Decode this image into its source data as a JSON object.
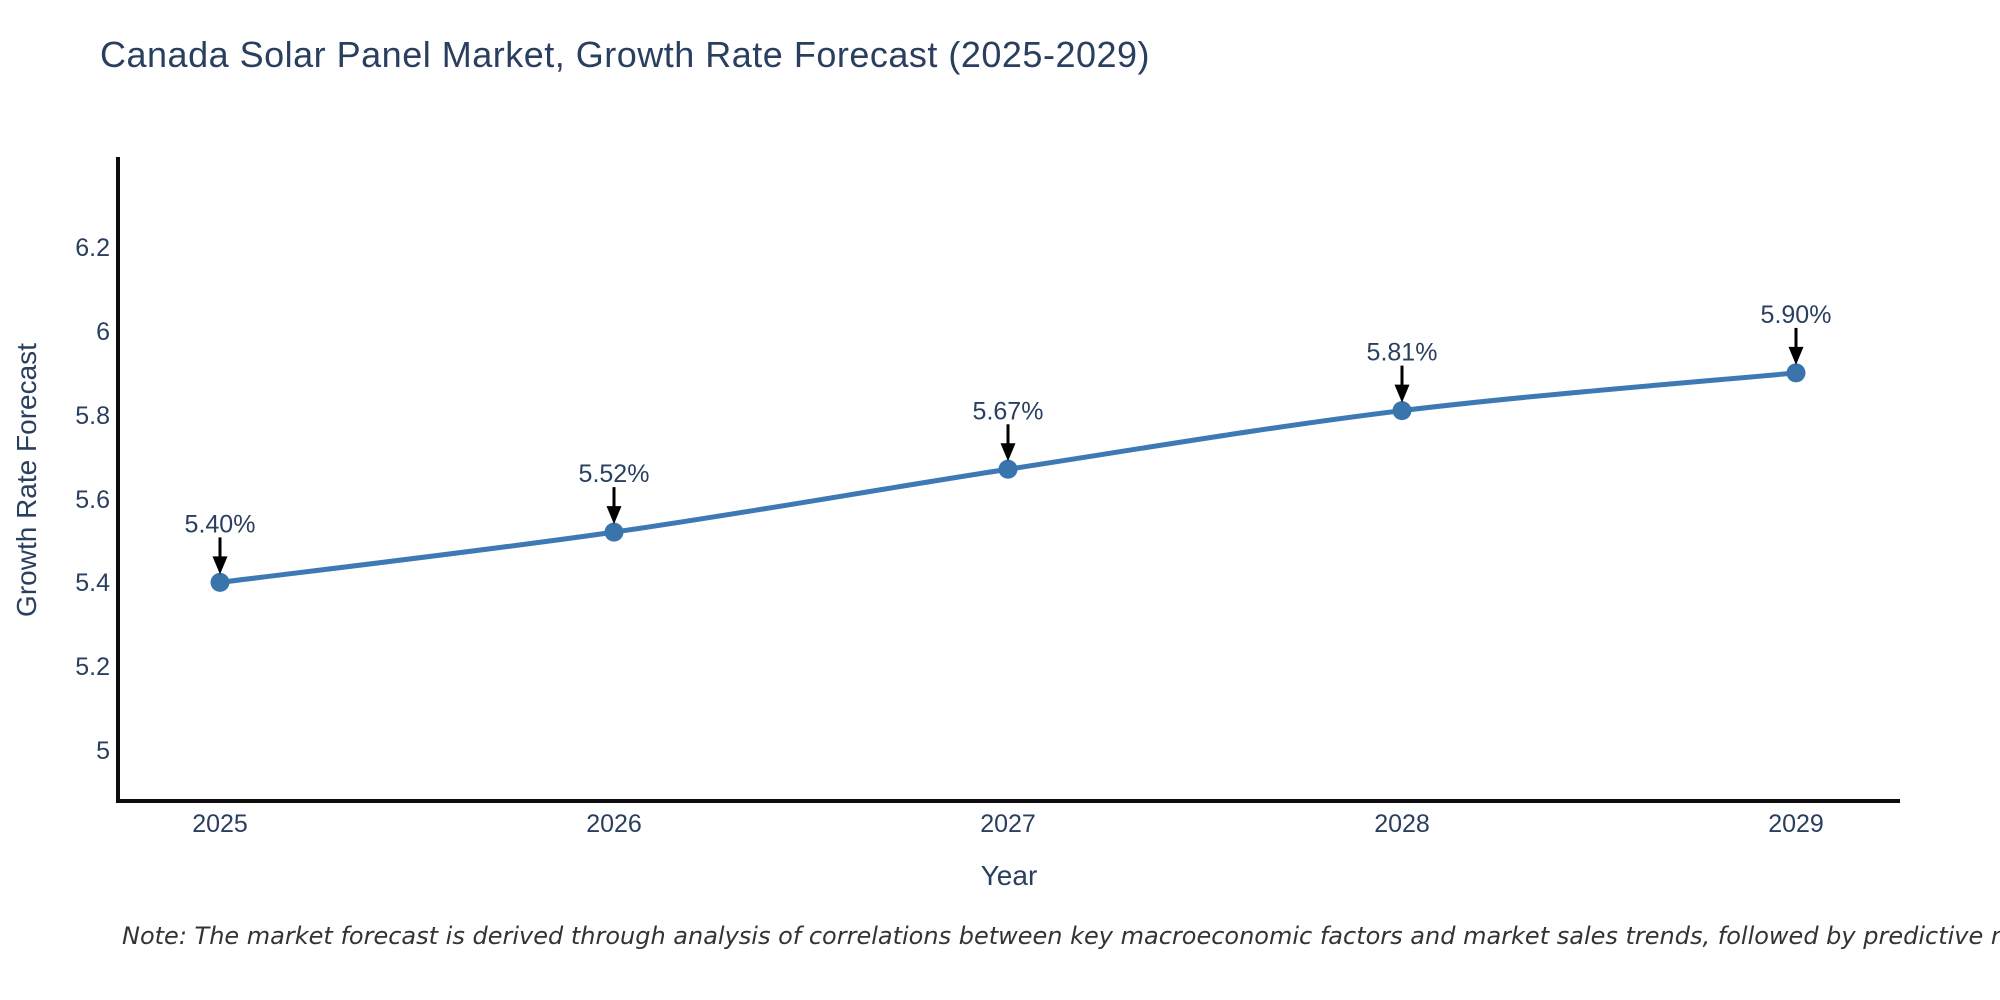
{
  "title": "Canada Solar Panel Market, Growth Rate Forecast (2025-2029)",
  "note": "Note: The market forecast is derived through analysis of correlations between key macroeconomic factors and market sales trends, followed by predictive modeling to project future sales",
  "colors": {
    "title_text": "#2a3f5f",
    "tick_text": "#2a3f5f",
    "line": "#3e79b6",
    "marker": "#3a74ad",
    "axis_line": "#0d0d0d",
    "arrow": "#000000",
    "note_text": "#333333",
    "background": "#ffffff"
  },
  "chart_data": {
    "type": "line",
    "title": "Canada Solar Panel Market, Growth Rate Forecast (2025-2029)",
    "xlabel": "Year",
    "ylabel": "Growth Rate Forecast",
    "x": [
      2025,
      2026,
      2027,
      2028,
      2029
    ],
    "series": [
      {
        "name": "Growth Rate Forecast",
        "values": [
          5.4,
          5.52,
          5.67,
          5.81,
          5.9
        ]
      }
    ],
    "point_labels": [
      "5.40%",
      "5.52%",
      "5.67%",
      "5.81%",
      "5.90%"
    ],
    "xticks": [
      "2025",
      "2026",
      "2027",
      "2028",
      "2029"
    ],
    "yticks": [
      "6.2",
      "6",
      "5.8",
      "5.6",
      "5.4",
      "5.2",
      "5"
    ],
    "ytick_values": [
      6.2,
      6.0,
      5.8,
      5.6,
      5.4,
      5.2,
      5.0
    ],
    "ylim": [
      4.88,
      6.41
    ],
    "line_shape": "spline",
    "grid": false,
    "legend": false,
    "markers": true,
    "annotation_arrows": true
  }
}
